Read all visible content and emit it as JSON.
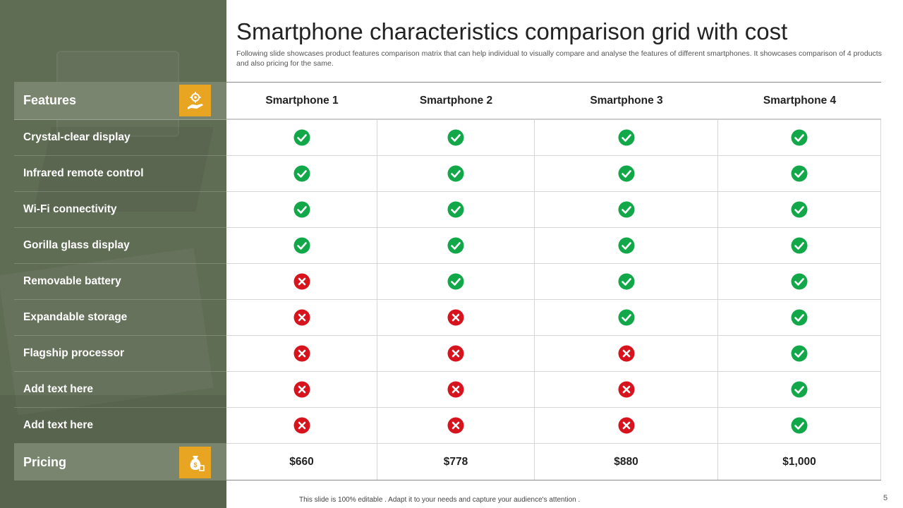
{
  "slide": {
    "title": "Smartphone characteristics comparison grid with cost",
    "subtitle": "Following slide showcases product features comparison matrix that can help individual to visually compare and analyse the features of different smartphones. It showcases comparison of 4 products and also pricing for the same.",
    "footer": "This slide is 100% editable . Adapt it to your needs and capture your audience's attention .",
    "page_number": "5"
  },
  "colors": {
    "panel": "#606d55",
    "header_bg": "#7a8570",
    "icon_box": "#e8a521",
    "check": "#12a84a",
    "cross": "#d7141e"
  },
  "features_header": {
    "label": "Features",
    "icon": "gear-hand-icon"
  },
  "pricing_header": {
    "label": "Pricing",
    "icon": "money-bag-icon"
  },
  "products": [
    "Smartphone 1",
    "Smartphone 2",
    "Smartphone 3",
    "Smartphone 4"
  ],
  "features": [
    "Crystal-clear display",
    "Infrared remote control",
    "Wi-Fi connectivity",
    "Gorilla glass display",
    "Removable battery",
    "Expandable storage",
    "Flagship processor",
    "Add text here",
    "Add text here"
  ],
  "matrix": [
    [
      true,
      true,
      true,
      true
    ],
    [
      true,
      true,
      true,
      true
    ],
    [
      true,
      true,
      true,
      true
    ],
    [
      true,
      true,
      true,
      true
    ],
    [
      false,
      true,
      true,
      true
    ],
    [
      false,
      false,
      true,
      true
    ],
    [
      false,
      false,
      false,
      true
    ],
    [
      false,
      false,
      false,
      true
    ],
    [
      false,
      false,
      false,
      true
    ]
  ],
  "prices": [
    "$660",
    "$778",
    "$880",
    "$1,000"
  ]
}
